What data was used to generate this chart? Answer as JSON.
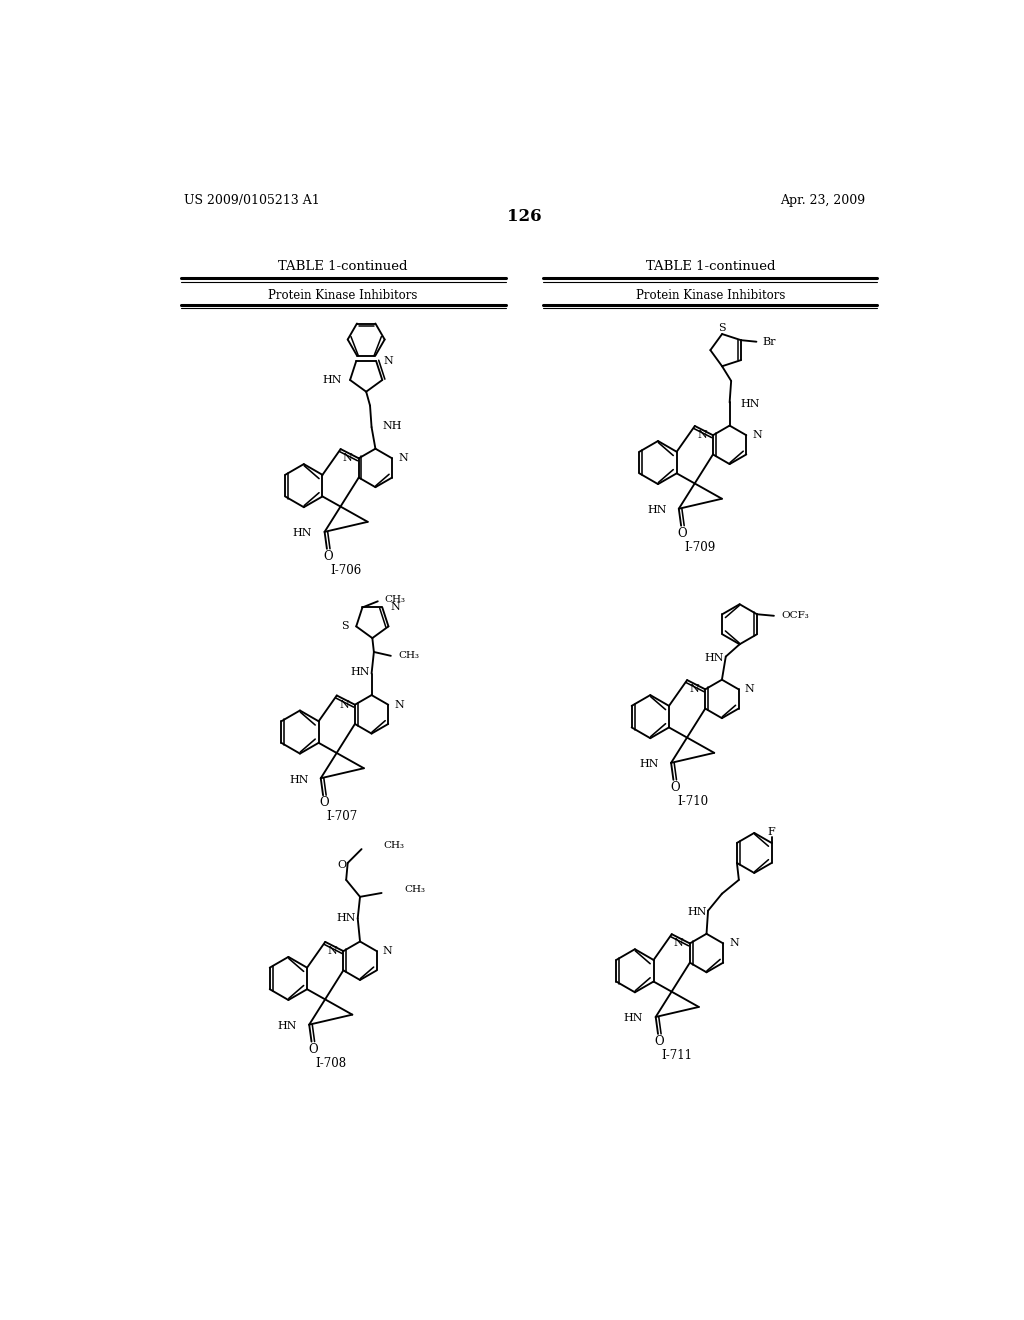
{
  "page_header_left": "US 2009/0105213 A1",
  "page_header_right": "Apr. 23, 2009",
  "page_number": "126",
  "table_title": "TABLE 1-continued",
  "column_header": "Protein Kinase Inhibitors",
  "background_color": "#ffffff"
}
